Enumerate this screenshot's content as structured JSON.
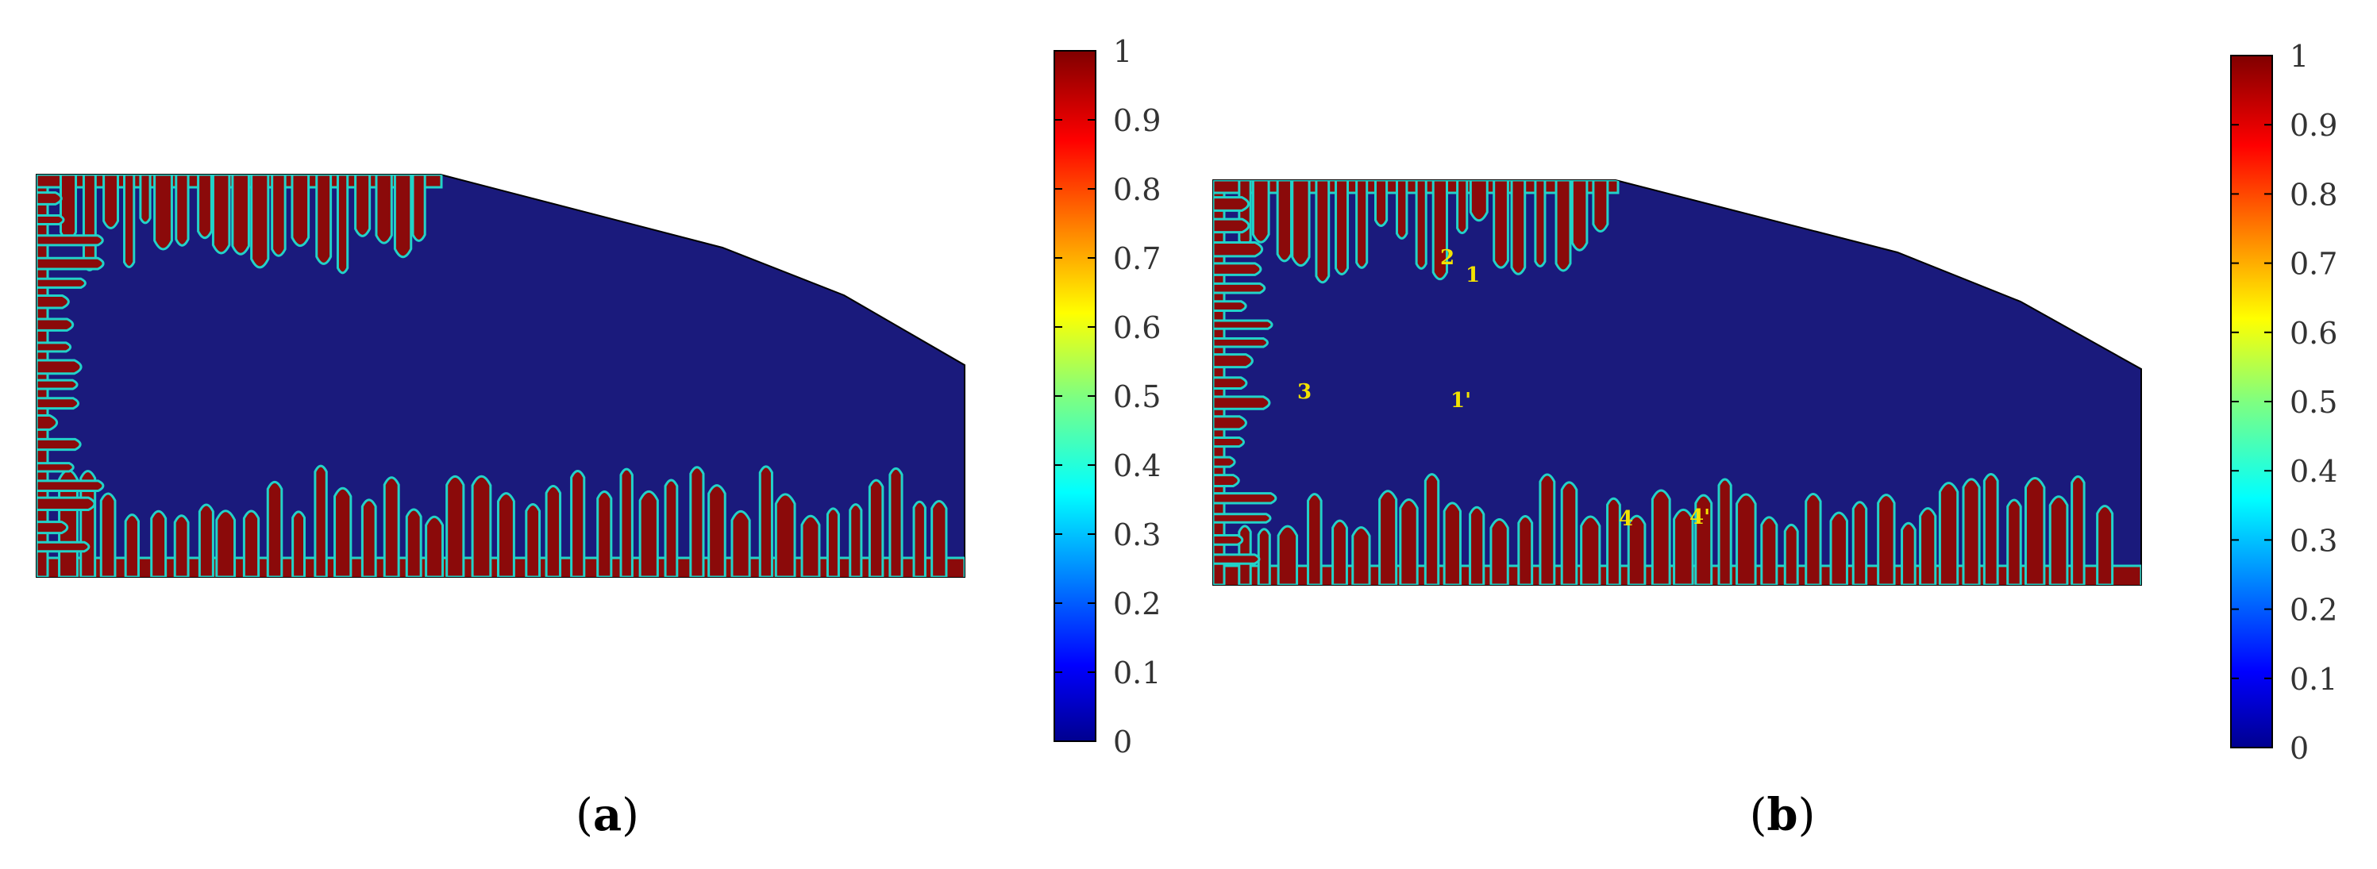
{
  "chart_data": [
    {
      "type": "heatmap",
      "panel_label": "(a)",
      "panel_letter": "a",
      "colorbar": {
        "range": [
          0,
          1
        ],
        "ticks": [
          "1",
          "0.9",
          "0.8",
          "0.7",
          "0.6",
          "0.5",
          "0.4",
          "0.3",
          "0.2",
          "0.1",
          "0"
        ],
        "colormap": "jet"
      },
      "annotations": [],
      "colors": {
        "background_phase": "#1a1a7c",
        "fingers_phase": "#8b0a0a",
        "interface": "#22d2c8"
      }
    },
    {
      "type": "heatmap",
      "panel_label": "(b)",
      "panel_letter": "b",
      "colorbar": {
        "range": [
          0,
          1
        ],
        "ticks": [
          "1",
          "0.9",
          "0.8",
          "0.7",
          "0.6",
          "0.5",
          "0.4",
          "0.3",
          "0.2",
          "0.1",
          "0"
        ],
        "colormap": "jet"
      },
      "annotations": [
        "2",
        "1",
        "3",
        "1'",
        "4",
        "4'"
      ],
      "colors": {
        "background_phase": "#1a1a7c",
        "fingers_phase": "#8b0a0a",
        "interface": "#22d2c8",
        "annotation": "#f2e200"
      }
    }
  ]
}
